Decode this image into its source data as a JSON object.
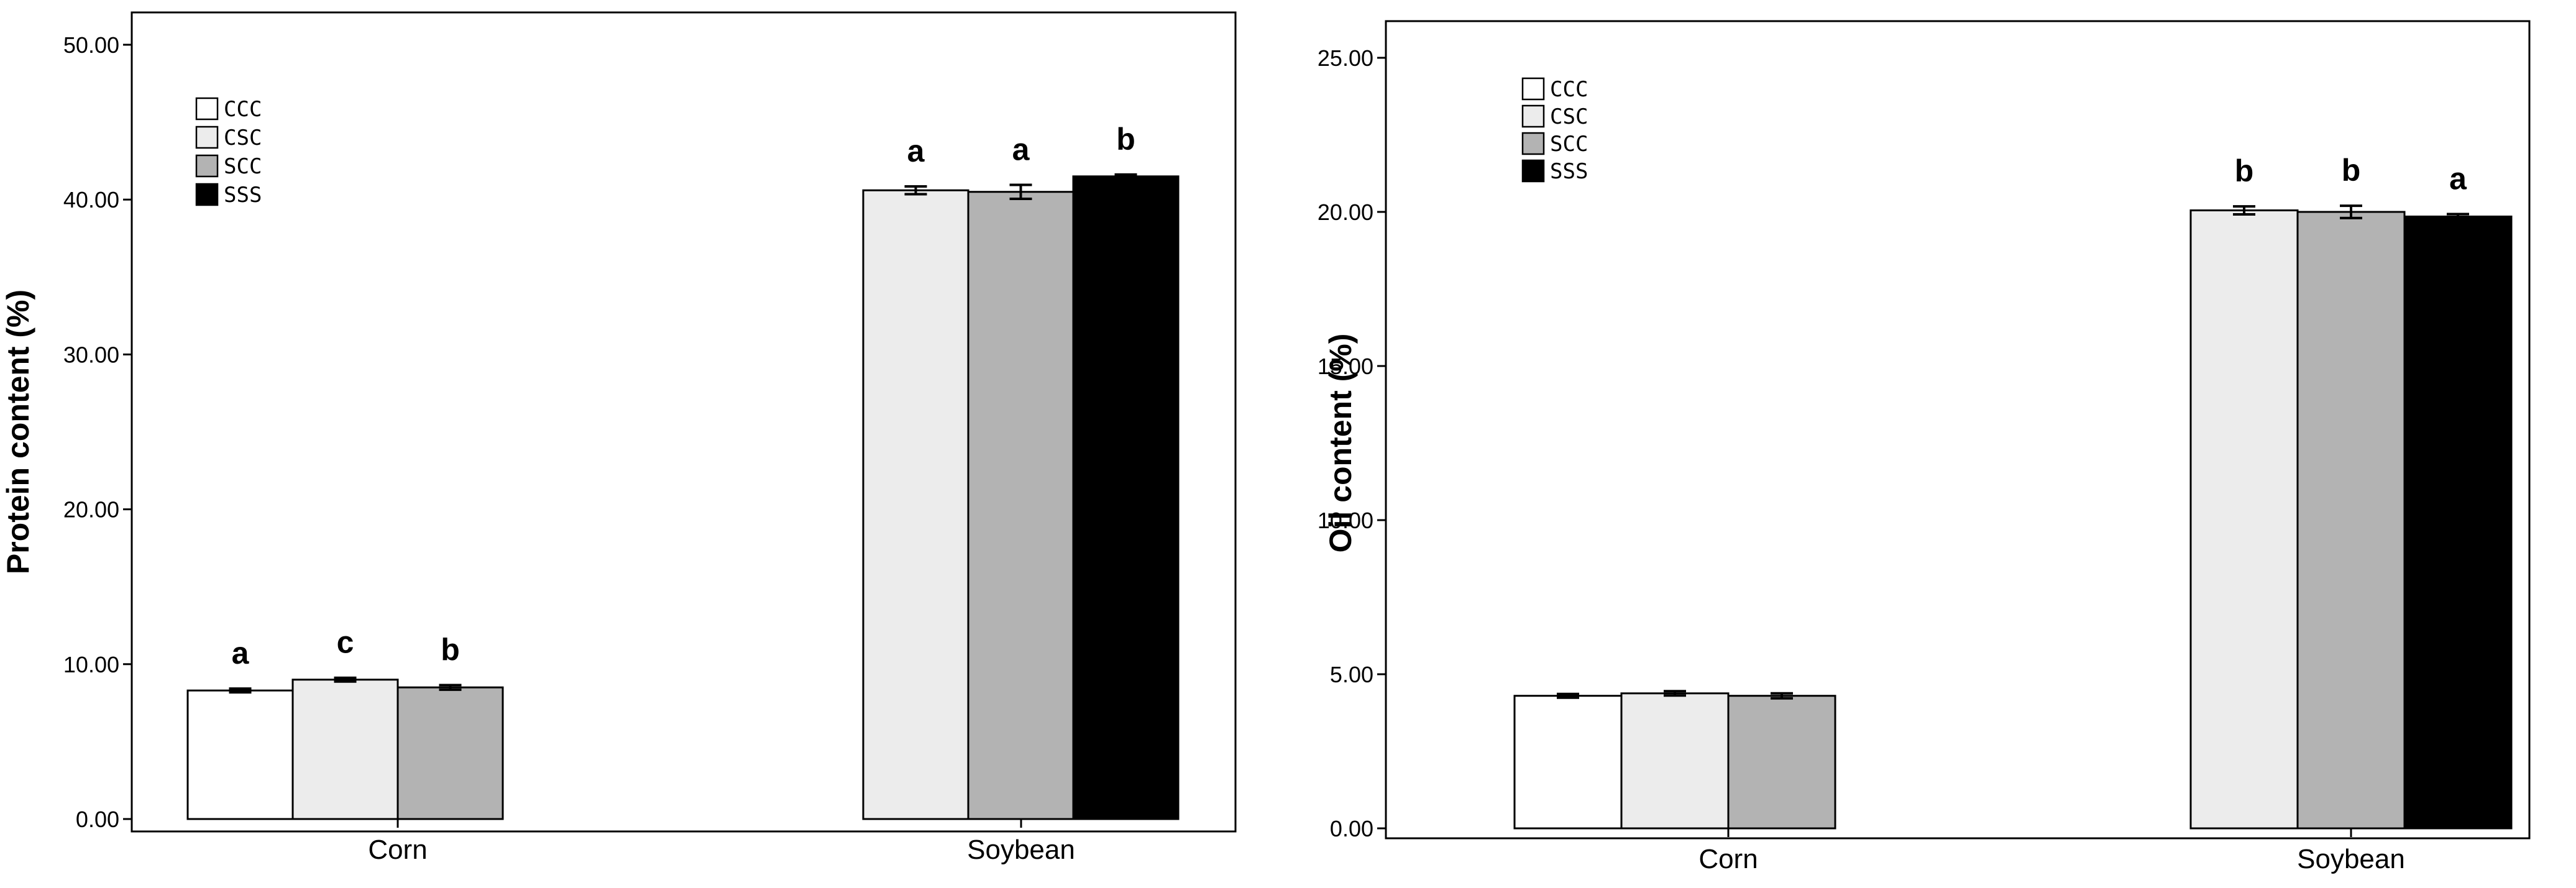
{
  "chart_data": [
    {
      "type": "bar",
      "title": "",
      "xlabel": "",
      "ylabel": "Protein content (%)",
      "ylim": [
        0,
        50
      ],
      "yticks": [
        "0.00",
        "10.00",
        "20.00",
        "30.00",
        "40.00",
        "50.00"
      ],
      "categories": [
        "Corn",
        "Soybean"
      ],
      "legend": {
        "placement": "top-left"
      },
      "grid": false,
      "series": [
        {
          "name": "CCC",
          "color": "#ffffff",
          "values": [
            8.3,
            null
          ],
          "errors": [
            0.12,
            null
          ],
          "letters": [
            "a",
            null
          ]
        },
        {
          "name": "CSC",
          "color": "#ececec",
          "values": [
            9.0,
            40.6
          ],
          "errors": [
            0.12,
            0.25
          ],
          "letters": [
            "c",
            "a"
          ]
        },
        {
          "name": "SCC",
          "color": "#b3b3b3",
          "values": [
            8.5,
            40.5
          ],
          "errors": [
            0.15,
            0.45
          ],
          "letters": [
            "b",
            "a"
          ]
        },
        {
          "name": "SSS",
          "color": "#000000",
          "values": [
            null,
            41.5
          ],
          "errors": [
            null,
            0.12
          ],
          "letters": [
            null,
            "b"
          ]
        }
      ]
    },
    {
      "type": "bar",
      "title": "",
      "xlabel": "",
      "ylabel": "Oil content (%)",
      "ylim": [
        0,
        25
      ],
      "yticks": [
        "0.00",
        "5.00",
        "10.00",
        "15.00",
        "20.00",
        "25.00"
      ],
      "categories": [
        "Corn",
        "Soybean"
      ],
      "legend": {
        "placement": "top-left"
      },
      "grid": false,
      "series": [
        {
          "name": "CCC",
          "color": "#ffffff",
          "values": [
            4.3,
            null
          ],
          "errors": [
            0.06,
            null
          ],
          "letters": [
            null,
            null
          ]
        },
        {
          "name": "CSC",
          "color": "#ececec",
          "values": [
            4.38,
            20.05
          ],
          "errors": [
            0.07,
            0.13
          ],
          "letters": [
            null,
            "b"
          ]
        },
        {
          "name": "SCC",
          "color": "#b3b3b3",
          "values": [
            4.3,
            20.0
          ],
          "errors": [
            0.08,
            0.2
          ],
          "letters": [
            null,
            "b"
          ]
        },
        {
          "name": "SSS",
          "color": "#000000",
          "values": [
            null,
            19.85
          ],
          "errors": [
            null,
            0.08
          ],
          "letters": [
            null,
            "a"
          ]
        }
      ]
    }
  ]
}
